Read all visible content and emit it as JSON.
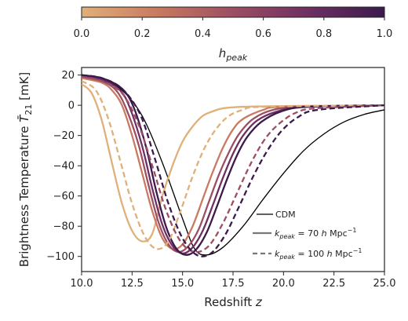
{
  "chart_data": {
    "type": "line",
    "xlabel": "Redshift z",
    "ylabel": "Brightness Temperature T̄21 [mK]",
    "xlim": [
      10.0,
      25.0
    ],
    "ylim": [
      -110,
      25
    ],
    "x_ticks": [
      "10.0",
      "12.5",
      "15.0",
      "17.5",
      "20.0",
      "22.5",
      "25.0"
    ],
    "y_ticks": [
      "20",
      "0",
      "−20",
      "−40",
      "−60",
      "−80",
      "−100"
    ],
    "colorbar": {
      "label": "h_peak",
      "range": [
        0.0,
        1.0
      ],
      "ticks": [
        "0.0",
        "0.2",
        "0.4",
        "0.6",
        "0.8",
        "1.0"
      ],
      "colors": [
        "#e0b07a",
        "#c97a60",
        "#9c4f63",
        "#6e2f62",
        "#3b1a4c"
      ]
    },
    "legend": {
      "placement": "lower-right",
      "entries": [
        {
          "label": "CDM",
          "style": "solid-thin",
          "color": "#000000"
        },
        {
          "label_main": "k",
          "label_sub": "peak",
          "label_rest": " = 70 h Mpc",
          "label_sup": "−1",
          "style": "solid",
          "color": "#777777"
        },
        {
          "label_main": "k",
          "label_sub": "peak",
          "label_rest": " = 100 h Mpc",
          "label_sup": "−1",
          "style": "dashed",
          "color": "#777777"
        }
      ]
    },
    "series": [
      {
        "group": "CDM",
        "h_peak": null,
        "color": "#000000",
        "dashed": false,
        "width": 1.3,
        "points": [
          [
            10,
            19
          ],
          [
            11,
            17
          ],
          [
            12,
            10
          ],
          [
            13,
            -7
          ],
          [
            14,
            -38
          ],
          [
            15,
            -75
          ],
          [
            15.6,
            -95
          ],
          [
            16.2,
            -99
          ],
          [
            17,
            -94
          ],
          [
            18,
            -80
          ],
          [
            19,
            -62
          ],
          [
            20,
            -45
          ],
          [
            21,
            -30
          ],
          [
            22,
            -19
          ],
          [
            23,
            -11
          ],
          [
            24,
            -6
          ],
          [
            25,
            -3
          ]
        ]
      },
      {
        "group": "k70",
        "h_peak": 0.2,
        "color": "#e0b07a",
        "dashed": false,
        "width": 2.3,
        "points": [
          [
            10,
            14
          ],
          [
            10.5,
            8
          ],
          [
            11,
            -10
          ],
          [
            11.5,
            -38
          ],
          [
            12,
            -65
          ],
          [
            12.5,
            -83
          ],
          [
            13,
            -90
          ],
          [
            13.5,
            -85
          ],
          [
            14,
            -60
          ],
          [
            14.5,
            -40
          ],
          [
            15,
            -24
          ],
          [
            15.5,
            -14
          ],
          [
            16,
            -7
          ],
          [
            16.5,
            -4
          ],
          [
            17,
            -2
          ],
          [
            18,
            -1
          ],
          [
            20,
            -0.5
          ],
          [
            25,
            0
          ]
        ]
      },
      {
        "group": "k70",
        "h_peak": 0.4,
        "color": "#c97a60",
        "dashed": false,
        "width": 2.3,
        "points": [
          [
            10,
            18
          ],
          [
            11,
            15
          ],
          [
            11.5,
            10
          ],
          [
            12,
            0
          ],
          [
            12.5,
            -20
          ],
          [
            13,
            -45
          ],
          [
            13.5,
            -70
          ],
          [
            14,
            -88
          ],
          [
            14.5,
            -95
          ],
          [
            15,
            -92
          ],
          [
            15.5,
            -80
          ],
          [
            16,
            -62
          ],
          [
            16.5,
            -44
          ],
          [
            17,
            -28
          ],
          [
            17.5,
            -16
          ],
          [
            18,
            -9
          ],
          [
            19,
            -3
          ],
          [
            20,
            -1
          ],
          [
            25,
            0
          ]
        ]
      },
      {
        "group": "k70",
        "h_peak": 0.6,
        "color": "#9c4f63",
        "dashed": false,
        "width": 2.3,
        "points": [
          [
            10,
            19
          ],
          [
            11,
            16
          ],
          [
            11.7,
            10
          ],
          [
            12.2,
            -2
          ],
          [
            12.8,
            -25
          ],
          [
            13.3,
            -52
          ],
          [
            13.8,
            -77
          ],
          [
            14.3,
            -92
          ],
          [
            14.8,
            -97
          ],
          [
            15.3,
            -93
          ],
          [
            15.8,
            -82
          ],
          [
            16.3,
            -64
          ],
          [
            16.8,
            -46
          ],
          [
            17.3,
            -31
          ],
          [
            17.8,
            -19
          ],
          [
            18.5,
            -9
          ],
          [
            19.5,
            -3
          ],
          [
            21,
            -1
          ],
          [
            25,
            0
          ]
        ]
      },
      {
        "group": "k70",
        "h_peak": 0.8,
        "color": "#6e2f62",
        "dashed": false,
        "width": 2.3,
        "points": [
          [
            10,
            20
          ],
          [
            11,
            17
          ],
          [
            11.9,
            10
          ],
          [
            12.4,
            -2
          ],
          [
            13,
            -27
          ],
          [
            13.5,
            -55
          ],
          [
            14,
            -79
          ],
          [
            14.5,
            -93
          ],
          [
            15,
            -98
          ],
          [
            15.5,
            -94
          ],
          [
            16,
            -83
          ],
          [
            16.5,
            -66
          ],
          [
            17,
            -48
          ],
          [
            17.5,
            -32
          ],
          [
            18,
            -20
          ],
          [
            18.7,
            -10
          ],
          [
            19.7,
            -4
          ],
          [
            21,
            -1
          ],
          [
            25,
            0
          ]
        ]
      },
      {
        "group": "k70",
        "h_peak": 1.0,
        "color": "#3b1a4c",
        "dashed": false,
        "width": 2.3,
        "points": [
          [
            10,
            20
          ],
          [
            11,
            18
          ],
          [
            12,
            11
          ],
          [
            12.6,
            -2
          ],
          [
            13.2,
            -28
          ],
          [
            13.7,
            -57
          ],
          [
            14.2,
            -81
          ],
          [
            14.7,
            -95
          ],
          [
            15.2,
            -99
          ],
          [
            15.7,
            -95
          ],
          [
            16.2,
            -84
          ],
          [
            16.7,
            -67
          ],
          [
            17.2,
            -49
          ],
          [
            17.7,
            -33
          ],
          [
            18.2,
            -21
          ],
          [
            18.9,
            -11
          ],
          [
            19.9,
            -4
          ],
          [
            21.2,
            -1
          ],
          [
            25,
            0
          ]
        ]
      },
      {
        "group": "k100",
        "h_peak": 0.2,
        "color": "#e0b07a",
        "dashed": true,
        "width": 2.3,
        "points": [
          [
            10,
            16
          ],
          [
            10.7,
            10
          ],
          [
            11.3,
            -8
          ],
          [
            11.9,
            -36
          ],
          [
            12.5,
            -65
          ],
          [
            13.1,
            -86
          ],
          [
            13.7,
            -95
          ],
          [
            14.3,
            -90
          ],
          [
            14.9,
            -70
          ],
          [
            15.5,
            -47
          ],
          [
            16.1,
            -28
          ],
          [
            16.7,
            -15
          ],
          [
            17.3,
            -7
          ],
          [
            18,
            -3
          ],
          [
            19,
            -1
          ],
          [
            25,
            0
          ]
        ]
      },
      {
        "group": "k100",
        "h_peak": 0.6,
        "color": "#9c4f63",
        "dashed": true,
        "width": 2.3,
        "points": [
          [
            10,
            19
          ],
          [
            11,
            16
          ],
          [
            12,
            8
          ],
          [
            12.8,
            -12
          ],
          [
            13.5,
            -40
          ],
          [
            14.2,
            -70
          ],
          [
            14.9,
            -90
          ],
          [
            15.6,
            -97
          ],
          [
            16.3,
            -93
          ],
          [
            17,
            -78
          ],
          [
            17.7,
            -58
          ],
          [
            18.4,
            -38
          ],
          [
            19.1,
            -22
          ],
          [
            19.8,
            -12
          ],
          [
            20.6,
            -5
          ],
          [
            21.6,
            -2
          ],
          [
            25,
            0
          ]
        ]
      },
      {
        "group": "k100",
        "h_peak": 1.0,
        "color": "#3b1a4c",
        "dashed": true,
        "width": 2.3,
        "points": [
          [
            10,
            20
          ],
          [
            11,
            18
          ],
          [
            12,
            11
          ],
          [
            12.9,
            -6
          ],
          [
            13.6,
            -34
          ],
          [
            14.3,
            -65
          ],
          [
            15,
            -88
          ],
          [
            15.7,
            -99
          ],
          [
            16.4,
            -98
          ],
          [
            17.1,
            -86
          ],
          [
            17.8,
            -67
          ],
          [
            18.5,
            -47
          ],
          [
            19.2,
            -30
          ],
          [
            19.9,
            -17
          ],
          [
            20.7,
            -8
          ],
          [
            21.7,
            -3
          ],
          [
            25,
            0
          ]
        ]
      }
    ]
  }
}
